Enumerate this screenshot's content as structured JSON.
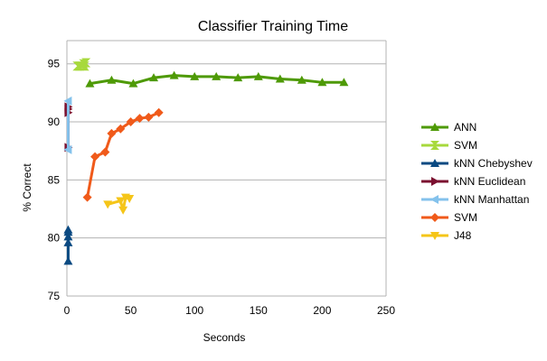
{
  "chart_data": {
    "type": "line",
    "title": "Classifier Training Time",
    "xlabel": "Seconds",
    "ylabel": "% Correct",
    "xlim": [
      0,
      250
    ],
    "ylim": [
      75,
      97
    ],
    "xticks": [
      0,
      50,
      100,
      150,
      200,
      250
    ],
    "yticks": [
      75,
      80,
      85,
      90,
      95
    ],
    "grid": "horizontal",
    "legend_position": "right",
    "series": [
      {
        "name": "ANN",
        "color": "#4e9a06",
        "marker": "triangle-up",
        "x": [
          18,
          35,
          52,
          68,
          84,
          100,
          117,
          134,
          150,
          167,
          184,
          200,
          217
        ],
        "y": [
          93.3,
          93.6,
          93.3,
          93.8,
          94.0,
          93.9,
          93.9,
          93.8,
          93.9,
          93.7,
          93.6,
          93.4,
          93.4
        ]
      },
      {
        "name": "SVM",
        "color": "#a7d93c",
        "marker": "hourglass",
        "x": [
          8,
          10,
          13,
          14,
          15
        ],
        "y": [
          94.8,
          94.8,
          95.0,
          94.8,
          95.1
        ]
      },
      {
        "name": "kNN Chebyshev",
        "color": "#0b4a82",
        "marker": "triangle-up",
        "x": [
          1,
          1,
          1,
          1,
          1
        ],
        "y": [
          78.0,
          79.6,
          80.1,
          80.5,
          80.7
        ]
      },
      {
        "name": "kNN Euclidean",
        "color": "#7b1030",
        "marker": "triangle-right",
        "x": [
          1,
          1,
          1,
          1
        ],
        "y": [
          87.8,
          90.8,
          91.1,
          91.3
        ]
      },
      {
        "name": "kNN Manhattan",
        "color": "#84c2ec",
        "marker": "triangle-left",
        "x": [
          1,
          1
        ],
        "y": [
          87.6,
          91.8
        ]
      },
      {
        "name": "SVM",
        "color": "#f05a1a",
        "marker": "diamond",
        "x": [
          16,
          22,
          30,
          35,
          42,
          50,
          57,
          64,
          72
        ],
        "y": [
          83.5,
          87.0,
          87.4,
          89.0,
          89.4,
          90.0,
          90.3,
          90.4,
          90.8
        ]
      },
      {
        "name": "J48",
        "color": "#f5c518",
        "marker": "triangle-down",
        "x": [
          32,
          42,
          44,
          46,
          49
        ],
        "y": [
          82.9,
          83.2,
          82.4,
          83.5,
          83.4
        ]
      }
    ]
  }
}
